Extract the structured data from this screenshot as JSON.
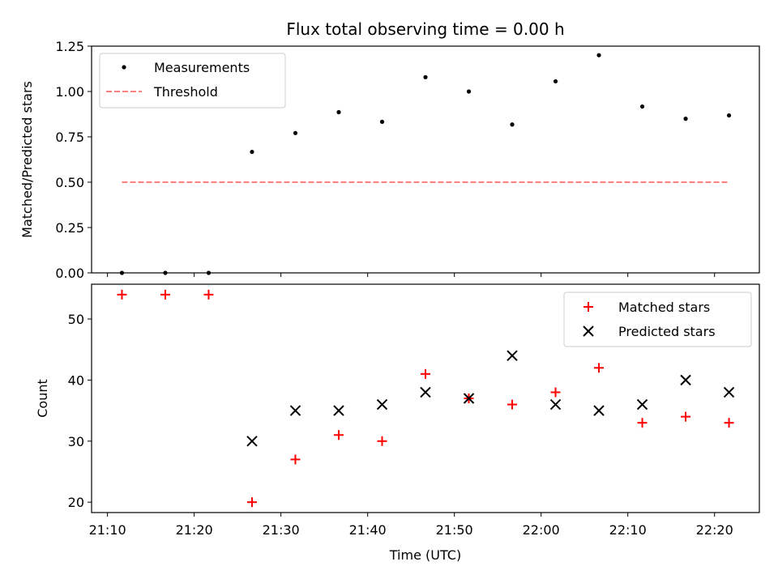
{
  "chart_data": [
    {
      "type": "scatter",
      "title": "Flux total observing time = 0.00 h",
      "xlabel": "",
      "ylabel": "Matched/Predicted stars",
      "ylim": [
        0.0,
        1.25
      ],
      "yticks": [
        "0.00",
        "0.25",
        "0.50",
        "0.75",
        "1.00",
        "1.25"
      ],
      "legend_position": "top-left",
      "series": [
        {
          "name": "Measurements",
          "marker": "dot",
          "color": "#000000",
          "x": [
            "21:11:40",
            "21:16:40",
            "21:21:40",
            "21:26:40",
            "21:31:40",
            "21:36:40",
            "21:41:40",
            "21:46:40",
            "21:51:40",
            "21:56:40",
            "22:01:40",
            "22:06:40",
            "22:11:40",
            "22:16:40",
            "22:21:40"
          ],
          "values": [
            0.0,
            0.0,
            0.0,
            0.667,
            0.771,
            0.886,
            0.833,
            1.079,
            1.0,
            0.818,
            1.056,
            1.2,
            0.917,
            0.85,
            0.868
          ]
        },
        {
          "name": "Threshold",
          "style": "dashed-line",
          "color": "#ff8080",
          "x": [
            "21:11:40",
            "22:21:40"
          ],
          "values": [
            0.5,
            0.5
          ]
        }
      ]
    },
    {
      "type": "scatter",
      "xlabel": "Time (UTC)",
      "ylabel": "Count",
      "ylim": [
        18.3,
        55.7
      ],
      "yticks": [
        "20",
        "30",
        "40",
        "50"
      ],
      "xlim": [
        "21:08:10",
        "22:25:10"
      ],
      "xticks": [
        "21:10",
        "21:20",
        "21:30",
        "21:40",
        "21:50",
        "22:00",
        "22:10",
        "22:20"
      ],
      "legend_position": "top-right",
      "series": [
        {
          "name": "Matched stars",
          "marker": "plus",
          "color": "#ff0000",
          "x": [
            "21:11:40",
            "21:16:40",
            "21:21:40",
            "21:26:40",
            "21:31:40",
            "21:36:40",
            "21:41:40",
            "21:46:40",
            "21:51:40",
            "21:56:40",
            "22:01:40",
            "22:06:40",
            "22:11:40",
            "22:16:40",
            "22:21:40"
          ],
          "values": [
            54,
            54,
            54,
            20,
            27,
            31,
            30,
            41,
            37,
            36,
            38,
            42,
            33,
            34,
            33
          ]
        },
        {
          "name": "Predicted stars",
          "marker": "x",
          "color": "#000000",
          "x": [
            "21:26:40",
            "21:31:40",
            "21:36:40",
            "21:41:40",
            "21:46:40",
            "21:51:40",
            "21:56:40",
            "22:01:40",
            "22:06:40",
            "22:11:40",
            "22:16:40",
            "22:21:40"
          ],
          "values": [
            30,
            35,
            35,
            36,
            38,
            37,
            44,
            36,
            35,
            36,
            40,
            38
          ]
        }
      ]
    }
  ]
}
